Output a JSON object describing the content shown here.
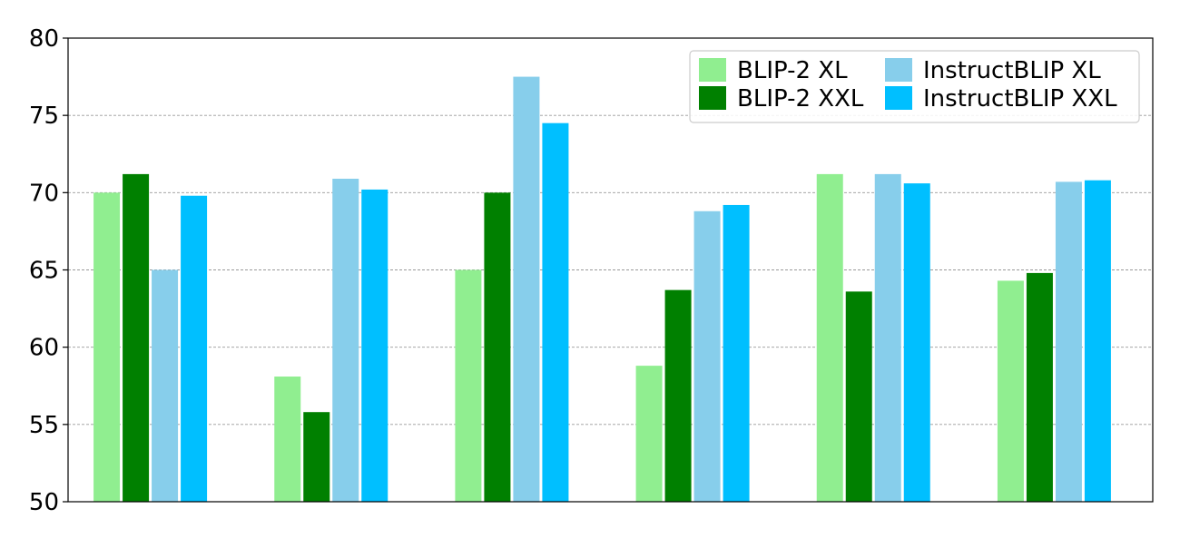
{
  "chart_data": {
    "type": "bar",
    "categories": [
      "",
      "",
      "",
      "",
      "",
      ""
    ],
    "series": [
      {
        "name": "BLIP-2 XL",
        "color": "#90ee90",
        "values": [
          70.0,
          58.1,
          65.0,
          58.8,
          71.2,
          64.3
        ]
      },
      {
        "name": "BLIP-2 XXL",
        "color": "#008000",
        "values": [
          71.2,
          55.8,
          70.0,
          63.7,
          63.6,
          64.8
        ]
      },
      {
        "name": "InstructBLIP XL",
        "color": "#87ceeb",
        "values": [
          65.0,
          70.9,
          77.5,
          68.8,
          71.2,
          70.7
        ]
      },
      {
        "name": "InstructBLIP XXL",
        "color": "#00bfff",
        "values": [
          69.8,
          70.2,
          74.5,
          69.2,
          70.6,
          70.8
        ]
      }
    ],
    "ylim": [
      50,
      80
    ],
    "yticks": [
      50,
      55,
      60,
      65,
      70,
      75,
      80
    ],
    "grid": "y-dashed",
    "legend": "top-right, 2 columns",
    "title": "",
    "xlabel": "",
    "ylabel": ""
  }
}
